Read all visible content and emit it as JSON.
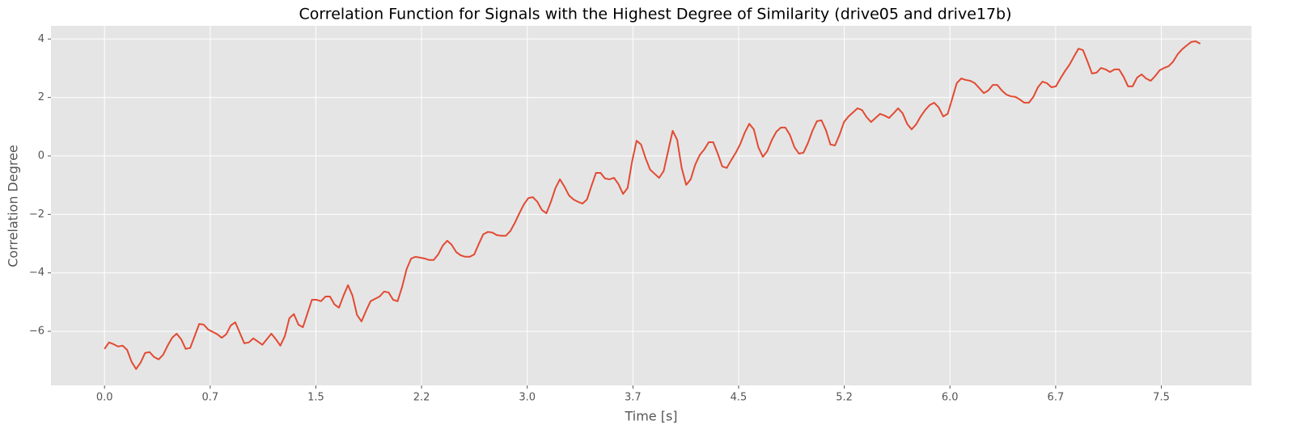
{
  "chart_data": {
    "type": "line",
    "title": "Correlation Function for Signals with the Highest Degree of Similarity (drive05 and drive17b)",
    "xlabel": "Time [s]",
    "ylabel": "Correlation Degree",
    "grid": true,
    "background": "#e5e5e5",
    "xlim": [
      -0.38,
      8.14
    ],
    "ylim": [
      -7.85,
      4.45
    ],
    "xticks": [
      {
        "value": 0,
        "label": "0.0"
      },
      {
        "value": 0.75,
        "label": "0.7"
      },
      1.5,
      {
        "value": 2.25,
        "label": "2.2"
      },
      {
        "value": 3,
        "label": "3.0"
      },
      {
        "value": 3.75,
        "label": "3.7"
      },
      4.5,
      {
        "value": 5.25,
        "label": "5.2"
      },
      {
        "value": 6,
        "label": "6.0"
      },
      {
        "value": 6.75,
        "label": "6.7"
      },
      7.5
    ],
    "yticks": [
      {
        "value": -6,
        "label": "−6"
      },
      {
        "value": -4,
        "label": "−4"
      },
      {
        "value": -2,
        "label": "−2"
      },
      0,
      2,
      4
    ],
    "x": [
      0,
      0.032,
      0.064,
      0.096,
      0.128,
      0.16,
      0.192,
      0.224,
      0.256,
      0.288,
      0.32,
      0.352,
      0.384,
      0.416,
      0.448,
      0.48,
      0.512,
      0.544,
      0.576,
      0.608,
      0.64,
      0.672,
      0.704,
      0.736,
      0.768,
      0.8,
      0.832,
      0.864,
      0.896,
      0.928,
      0.96,
      0.992,
      1.024,
      1.056,
      1.088,
      1.12,
      1.152,
      1.184,
      1.216,
      1.248,
      1.28,
      1.312,
      1.344,
      1.376,
      1.408,
      1.44,
      1.472,
      1.504,
      1.536,
      1.568,
      1.6,
      1.632,
      1.664,
      1.696,
      1.728,
      1.76,
      1.792,
      1.824,
      1.856,
      1.888,
      1.92,
      1.952,
      1.984,
      2.016,
      2.048,
      2.08,
      2.112,
      2.144,
      2.176,
      2.208,
      2.24,
      2.272,
      2.304,
      2.336,
      2.368,
      2.4,
      2.432,
      2.464,
      2.496,
      2.528,
      2.56,
      2.592,
      2.624,
      2.656,
      2.688,
      2.72,
      2.752,
      2.784,
      2.816,
      2.848,
      2.88,
      2.912,
      2.944,
      2.976,
      3.008,
      3.04,
      3.072,
      3.104,
      3.136,
      3.168,
      3.2,
      3.232,
      3.264,
      3.296,
      3.328,
      3.36,
      3.392,
      3.424,
      3.456,
      3.488,
      3.52,
      3.552,
      3.584,
      3.616,
      3.648,
      3.68,
      3.712,
      3.744,
      3.776,
      3.808,
      3.84,
      3.872,
      3.904,
      3.936,
      3.968,
      4,
      4.032,
      4.064,
      4.096,
      4.128,
      4.16,
      4.192,
      4.224,
      4.256,
      4.288,
      4.32,
      4.352,
      4.384,
      4.416,
      4.448,
      4.48,
      4.512,
      4.544,
      4.576,
      4.608,
      4.64,
      4.672,
      4.704,
      4.736,
      4.768,
      4.8,
      4.832,
      4.864,
      4.896,
      4.928,
      4.96,
      4.992,
      5.024,
      5.056,
      5.088,
      5.12,
      5.152,
      5.184,
      5.216,
      5.248,
      5.28,
      5.312,
      5.344,
      5.376,
      5.408,
      5.44,
      5.472,
      5.504,
      5.536,
      5.568,
      5.6,
      5.632,
      5.664,
      5.696,
      5.728,
      5.76,
      5.792,
      5.824,
      5.856,
      5.888,
      5.92,
      5.952,
      5.984,
      6.016,
      6.048,
      6.08,
      6.112,
      6.144,
      6.176,
      6.208,
      6.24,
      6.272,
      6.304,
      6.336,
      6.368,
      6.4,
      6.432,
      6.464,
      6.496,
      6.528,
      6.56,
      6.592,
      6.624,
      6.656,
      6.688,
      6.72,
      6.752,
      6.784,
      6.816,
      6.848,
      6.88,
      6.912,
      6.944,
      6.976,
      7.008,
      7.04,
      7.072,
      7.104,
      7.136,
      7.168,
      7.2,
      7.232,
      7.264,
      7.296,
      7.328,
      7.36,
      7.392,
      7.424,
      7.456,
      7.488,
      7.52,
      7.552,
      7.584,
      7.616,
      7.648,
      7.68,
      7.712,
      7.744,
      7.776
    ],
    "series": [
      {
        "color": "#e24a33",
        "values": [
          -6.6,
          -6.38,
          -6.44,
          -6.52,
          -6.49,
          -6.63,
          -7.04,
          -7.29,
          -7.07,
          -6.74,
          -6.71,
          -6.88,
          -6.96,
          -6.8,
          -6.49,
          -6.22,
          -6.08,
          -6.27,
          -6.6,
          -6.57,
          -6.16,
          -5.75,
          -5.77,
          -5.94,
          -6.02,
          -6.1,
          -6.22,
          -6.1,
          -5.8,
          -5.69,
          -6.05,
          -6.41,
          -6.38,
          -6.24,
          -6.35,
          -6.46,
          -6.27,
          -6.08,
          -6.27,
          -6.49,
          -6.16,
          -5.55,
          -5.41,
          -5.77,
          -5.86,
          -5.39,
          -4.92,
          -4.92,
          -4.97,
          -4.81,
          -4.81,
          -5.08,
          -5.19,
          -4.78,
          -4.42,
          -4.78,
          -5.44,
          -5.66,
          -5.3,
          -4.97,
          -4.89,
          -4.81,
          -4.64,
          -4.67,
          -4.92,
          -4.97,
          -4.48,
          -3.87,
          -3.51,
          -3.45,
          -3.48,
          -3.51,
          -3.56,
          -3.56,
          -3.37,
          -3.07,
          -2.9,
          -3.04,
          -3.29,
          -3.4,
          -3.45,
          -3.45,
          -3.37,
          -3.01,
          -2.68,
          -2.6,
          -2.62,
          -2.71,
          -2.73,
          -2.73,
          -2.57,
          -2.29,
          -1.96,
          -1.66,
          -1.44,
          -1.41,
          -1.57,
          -1.85,
          -1.96,
          -1.57,
          -1.1,
          -0.8,
          -1.05,
          -1.35,
          -1.49,
          -1.57,
          -1.63,
          -1.49,
          -1.02,
          -0.58,
          -0.58,
          -0.77,
          -0.8,
          -0.75,
          -0.97,
          -1.3,
          -1.1,
          -0.19,
          0.52,
          0.39,
          -0.08,
          -0.47,
          -0.61,
          -0.75,
          -0.52,
          0.17,
          0.86,
          0.55,
          -0.41,
          -0.99,
          -0.8,
          -0.3,
          0.03,
          0.22,
          0.47,
          0.47,
          0.08,
          -0.36,
          -0.41,
          -0.14,
          0.11,
          0.41,
          0.8,
          1.1,
          0.91,
          0.3,
          -0.03,
          0.17,
          0.55,
          0.83,
          0.97,
          0.97,
          0.72,
          0.3,
          0.08,
          0.11,
          0.44,
          0.86,
          1.19,
          1.22,
          0.88,
          0.39,
          0.36,
          0.72,
          1.16,
          1.35,
          1.49,
          1.63,
          1.57,
          1.33,
          1.16,
          1.3,
          1.44,
          1.38,
          1.3,
          1.46,
          1.63,
          1.46,
          1.1,
          0.91,
          1.08,
          1.35,
          1.57,
          1.74,
          1.82,
          1.66,
          1.35,
          1.44,
          1.96,
          2.49,
          2.65,
          2.6,
          2.57,
          2.49,
          2.32,
          2.15,
          2.24,
          2.43,
          2.43,
          2.24,
          2.1,
          2.04,
          2.02,
          1.93,
          1.82,
          1.82,
          2.02,
          2.35,
          2.54,
          2.49,
          2.35,
          2.38,
          2.65,
          2.9,
          3.12,
          3.4,
          3.67,
          3.62,
          3.23,
          2.82,
          2.85,
          3.01,
          2.96,
          2.87,
          2.96,
          2.96,
          2.71,
          2.38,
          2.38,
          2.68,
          2.79,
          2.65,
          2.57,
          2.73,
          2.93,
          3.01,
          3.07,
          3.23,
          3.48,
          3.65,
          3.78,
          3.9,
          3.92,
          3.84
        ]
      }
    ]
  }
}
